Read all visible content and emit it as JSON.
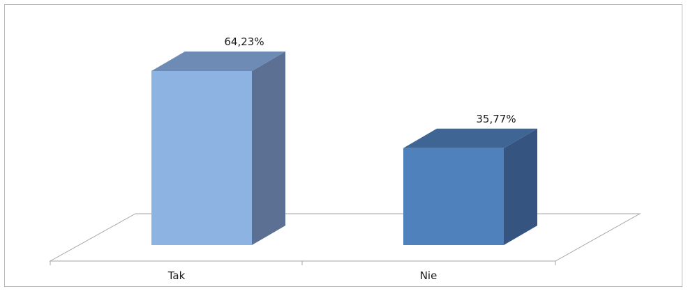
{
  "chart_data": {
    "type": "bar",
    "categories": [
      "Tak",
      "Nie"
    ],
    "values": [
      64.23,
      35.77
    ],
    "data_labels": [
      "64,23%",
      "35,77%"
    ],
    "title": "",
    "xlabel": "",
    "ylabel": "",
    "ylim": [
      0,
      70
    ],
    "grid": false,
    "legend": "none",
    "style": "3d-column",
    "colors": {
      "Tak": {
        "front": "#8db3e2",
        "side": "#5b7093",
        "top": "#6d8bb5"
      },
      "Nie": {
        "front": "#4f81bd",
        "side": "#355480",
        "top": "#3f6595"
      },
      "floor": "#a6a6a6",
      "border": "#b8b8b8"
    }
  }
}
